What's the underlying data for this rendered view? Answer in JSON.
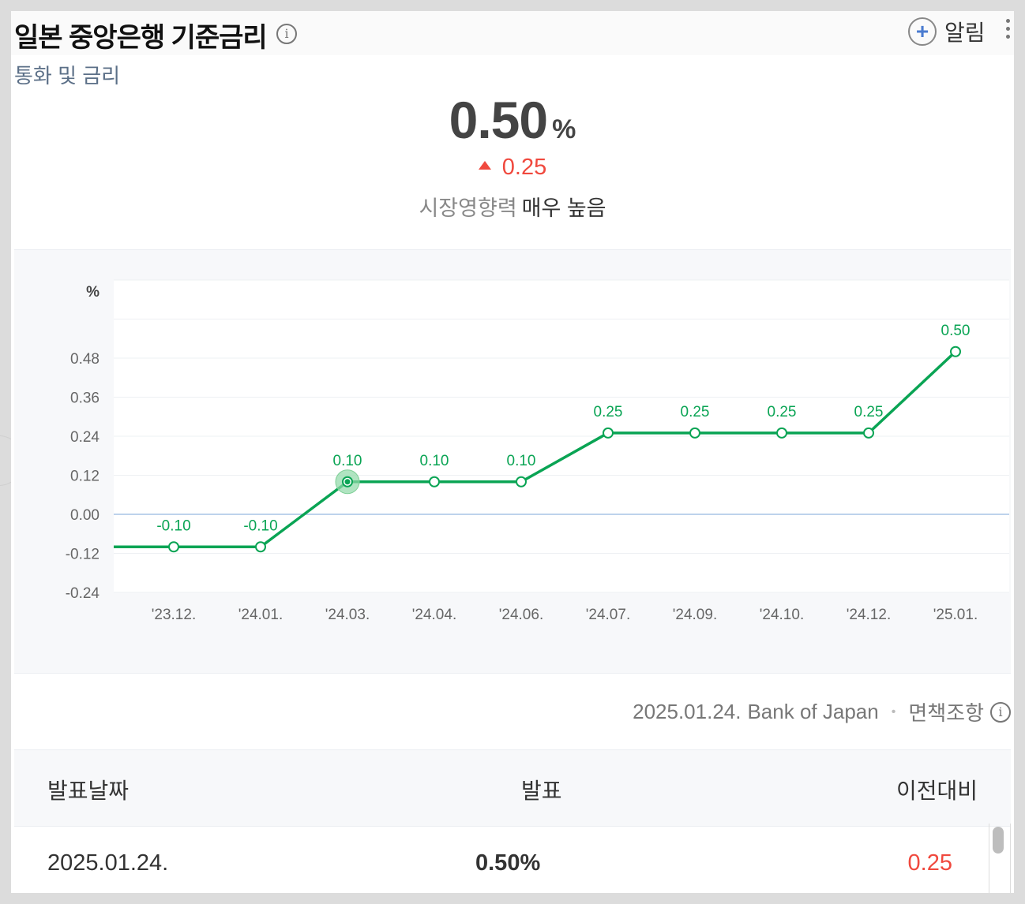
{
  "header": {
    "title": "일본 중앙은행 기준금리",
    "subtitle": "통화 및 금리",
    "alarm_label": "알림",
    "info_glyph": "i"
  },
  "summary": {
    "value": "0.50",
    "unit": "%",
    "change": "0.25",
    "change_direction": "up",
    "impact_label": "시장영향력",
    "impact_value": "매우 높음"
  },
  "chart_data": {
    "type": "line",
    "ylabel": "%",
    "y_ticks": [
      "0.48",
      "0.36",
      "0.24",
      "0.12",
      "0.00",
      "-0.12",
      "-0.24"
    ],
    "ylim": [
      -0.24,
      0.72
    ],
    "categories": [
      "'23.12.",
      "'24.01.",
      "'24.03.",
      "'24.04.",
      "'24.06.",
      "'24.07.",
      "'24.09.",
      "'24.10.",
      "'24.12.",
      "'25.01."
    ],
    "values": [
      -0.1,
      -0.1,
      0.1,
      0.1,
      0.1,
      0.25,
      0.25,
      0.25,
      0.25,
      0.5
    ],
    "labels": [
      "-0.10",
      "-0.10",
      "0.10",
      "0.10",
      "0.10",
      "0.25",
      "0.25",
      "0.25",
      "0.25",
      "0.50"
    ],
    "highlight_index": 2,
    "grid": true,
    "line_color": "#0aa454",
    "zero_line_color": "#a7c3e6"
  },
  "source": {
    "date": "2025.01.24.",
    "org": "Bank of Japan",
    "separator": "•",
    "disclaimer": "면책조항"
  },
  "table": {
    "headers": [
      "발표날짜",
      "발표",
      "이전대비"
    ],
    "rows": [
      {
        "date": "2025.01.24.",
        "value": "0.50%",
        "change": "0.25"
      }
    ]
  },
  "colors": {
    "accent_up": "#f0493e",
    "line": "#0aa454",
    "subtitle": "#5b6f87"
  }
}
